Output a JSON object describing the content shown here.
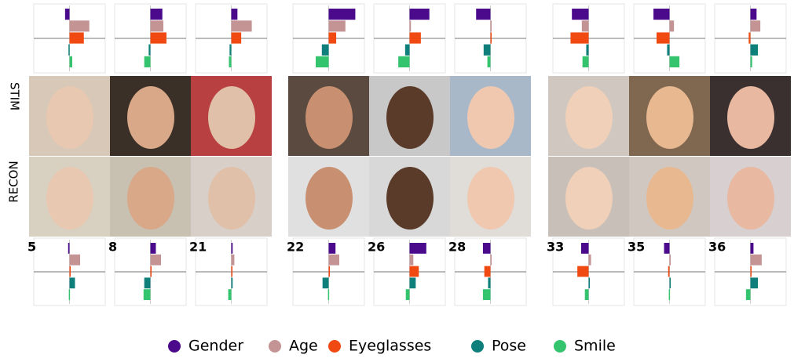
{
  "chart_data": {
    "type": "bar",
    "orientation": "horizontal",
    "xlim": [
      -1,
      1
    ],
    "row_labels": [
      "STIM",
      "RECON"
    ],
    "series": [
      {
        "name": "Gender",
        "color": "#4b0a8c"
      },
      {
        "name": "Age",
        "color": "#c49394"
      },
      {
        "name": "Eyeglasses",
        "color": "#f04a12"
      },
      {
        "name": "Pose",
        "color": "#0e7f7a"
      },
      {
        "name": "Smile",
        "color": "#34c46e"
      }
    ],
    "panels": [
      {
        "label": "5",
        "stim": [
          -0.13,
          0.58,
          0.42,
          -0.03,
          0.08
        ],
        "recon": [
          -0.04,
          0.31,
          0.02,
          0.16,
          -0.02
        ]
      },
      {
        "label": "8",
        "stim": [
          0.35,
          0.38,
          0.47,
          -0.05,
          -0.18
        ],
        "recon": [
          0.16,
          0.31,
          0.02,
          -0.18,
          -0.2
        ]
      },
      {
        "label": "21",
        "stim": [
          0.18,
          0.6,
          0.29,
          -0.05,
          -0.07
        ],
        "recon": [
          0.04,
          0.09,
          0.02,
          0.04,
          -0.09
        ]
      },
      {
        "label": "22",
        "stim": [
          0.78,
          0.49,
          0.22,
          -0.2,
          -0.38
        ],
        "recon": [
          0.2,
          0.31,
          0.01,
          -0.18,
          -0.02
        ]
      },
      {
        "label": "26",
        "stim": [
          0.58,
          0.04,
          0.33,
          -0.13,
          -0.33
        ],
        "recon": [
          0.49,
          0.11,
          0.27,
          0.18,
          -0.11
        ]
      },
      {
        "label": "28",
        "stim": [
          -0.42,
          0.02,
          0.03,
          -0.2,
          -0.09
        ],
        "recon": [
          -0.22,
          0.02,
          -0.18,
          -0.07,
          -0.22
        ]
      },
      {
        "label": "33",
        "stim": [
          -0.49,
          -0.2,
          -0.53,
          -0.07,
          -0.18
        ],
        "recon": [
          -0.22,
          0.07,
          -0.33,
          0.01,
          -0.11
        ]
      },
      {
        "label": "35",
        "stim": [
          -0.47,
          0.13,
          -0.38,
          -0.07,
          0.29
        ],
        "recon": [
          -0.16,
          0.02,
          -0.04,
          0.02,
          -0.02
        ]
      },
      {
        "label": "36",
        "stim": [
          0.18,
          0.29,
          -0.05,
          0.22,
          0.05
        ],
        "recon": [
          0.09,
          0.33,
          0.03,
          0.22,
          -0.13
        ]
      }
    ]
  }
}
